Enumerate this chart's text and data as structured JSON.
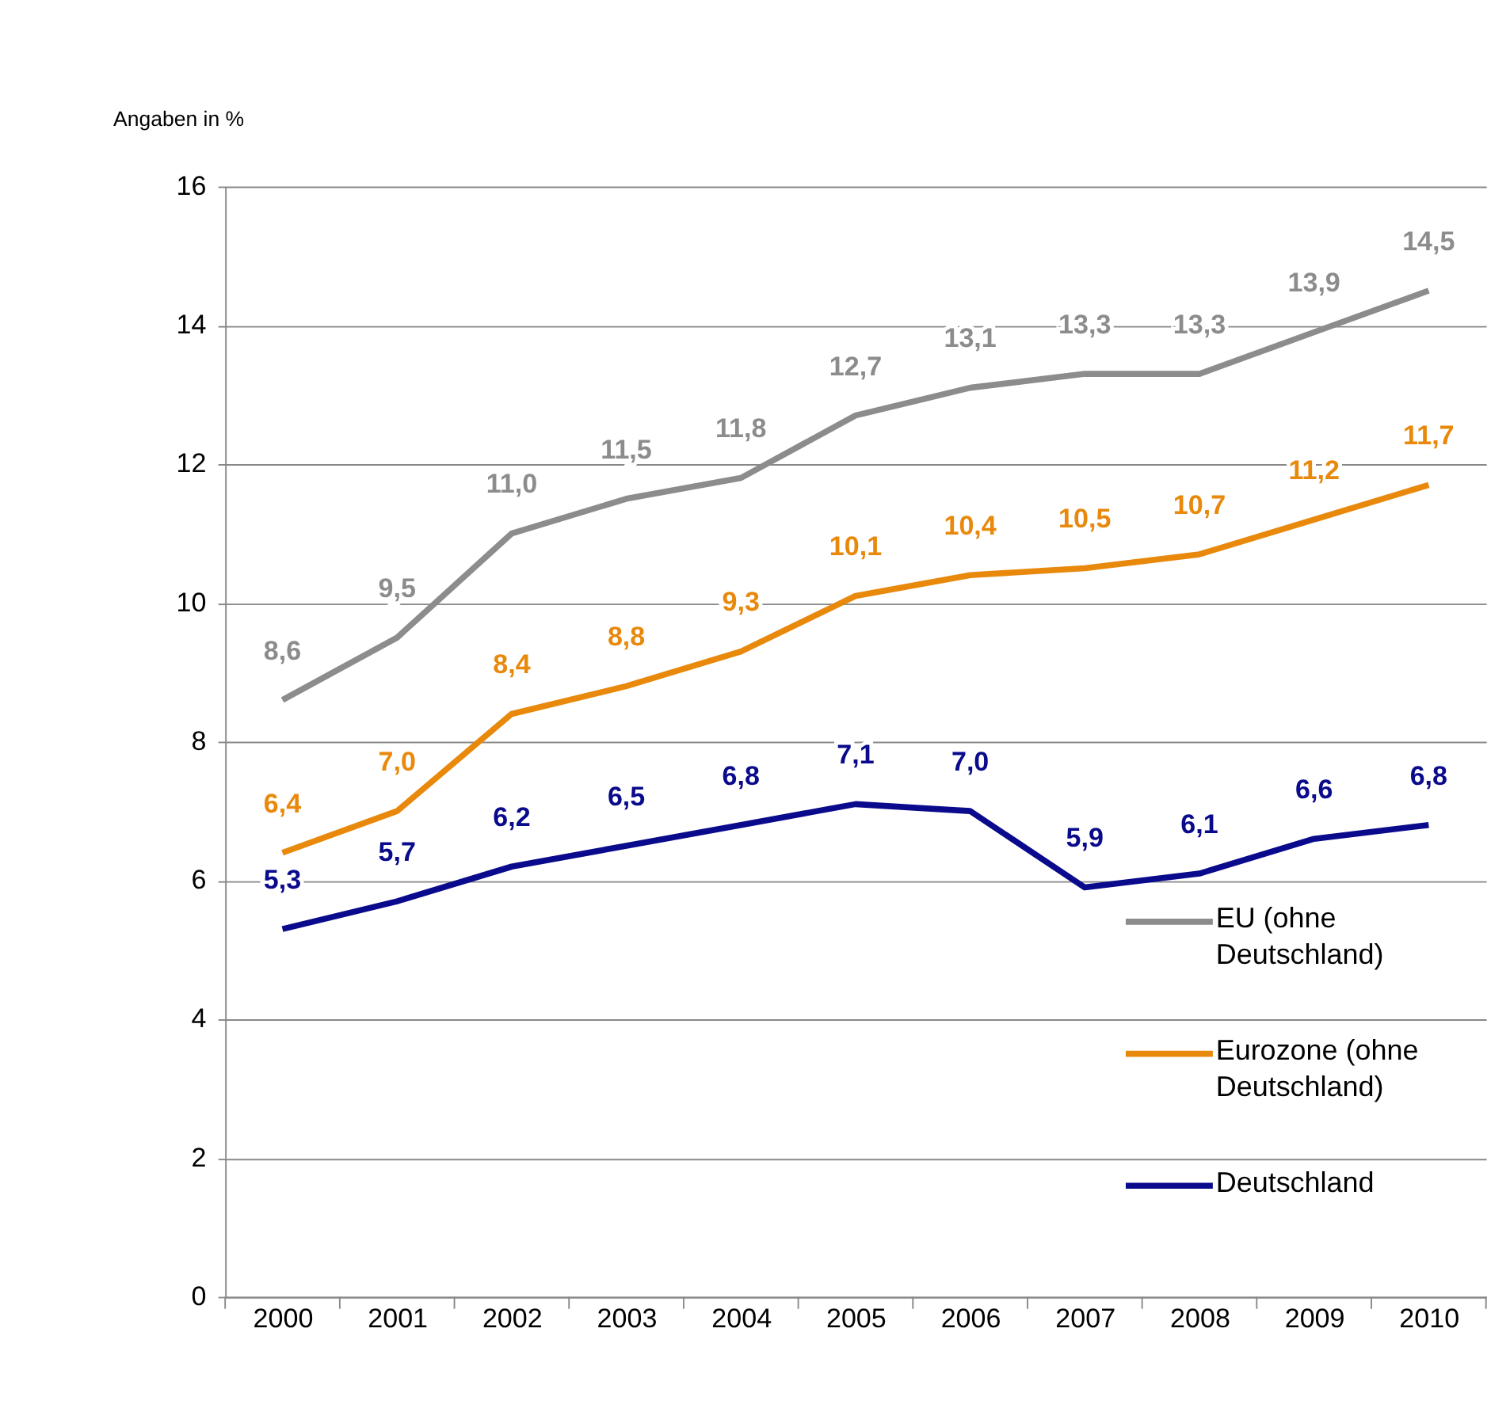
{
  "chart_data": {
    "type": "line",
    "ylabel": "Angaben in %",
    "categories": [
      "2000",
      "2001",
      "2002",
      "2003",
      "2004",
      "2005",
      "2006",
      "2007",
      "2008",
      "2009",
      "2010"
    ],
    "series": [
      {
        "name": "EU (ohne Deutschland)",
        "color": "#8c8c8c",
        "values": [
          8.6,
          9.5,
          11.0,
          11.5,
          11.8,
          12.7,
          13.1,
          13.3,
          13.3,
          13.9,
          14.5
        ],
        "value_labels": [
          "8,6",
          "9,5",
          "11,0",
          "11,5",
          "11,8",
          "12,7",
          "13,1",
          "13,3",
          "13,3",
          "13,9",
          "14,5"
        ]
      },
      {
        "name": "Eurozone (ohne Deutschland)",
        "color": "#e8890c",
        "values": [
          6.4,
          7.0,
          8.4,
          8.8,
          9.3,
          10.1,
          10.4,
          10.5,
          10.7,
          11.2,
          11.7
        ],
        "value_labels": [
          "6,4",
          "7,0",
          "8,4",
          "8,8",
          "9,3",
          "10,1",
          "10,4",
          "10,5",
          "10,7",
          "11,2",
          "11,7"
        ]
      },
      {
        "name": "Deutschland",
        "color": "#0a0a8c",
        "values": [
          5.3,
          5.7,
          6.2,
          6.5,
          6.8,
          7.1,
          7.0,
          5.9,
          6.1,
          6.6,
          6.8
        ],
        "value_labels": [
          "5,3",
          "5,7",
          "6,2",
          "6,5",
          "6,8",
          "7,1",
          "7,0",
          "5,9",
          "6,1",
          "6,6",
          "6,8"
        ]
      }
    ],
    "ylim": [
      0,
      16
    ],
    "yticks": [
      0,
      2,
      4,
      6,
      8,
      10,
      12,
      14,
      16
    ],
    "grid": "y",
    "legend": "bottom right",
    "marker": "none",
    "line_style": "solid"
  }
}
